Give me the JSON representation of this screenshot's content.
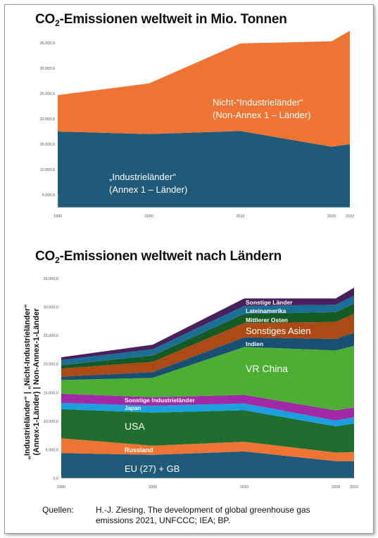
{
  "titles": {
    "chart1_pre": "CO",
    "chart1_sub": "2",
    "chart1_post": "-Emissionen weltweit in Mio. Tonnen",
    "chart2_pre": "CO",
    "chart2_sub": "2",
    "chart2_post": "-Emissionen weltweit nach Ländern"
  },
  "side_label": {
    "line1": "„Industrieländer“ | „Nicht-Industrieländer“",
    "line2": "(Annex-1-Länder) | Non-Annex-1-Länder"
  },
  "sources": {
    "label": "Quellen:",
    "text": "H.-J. Ziesing, The development of global greenhouse gas emissions 2021, UNFCCC; IEA; BP."
  },
  "chart_data": [
    {
      "type": "area",
      "stacked": true,
      "title": "CO2-Emissionen weltweit in Mio. Tonnen",
      "x": [
        1990,
        2000,
        2010,
        2020,
        2022
      ],
      "x_tick_labels": [
        "1990",
        "2000",
        "2010",
        "2020",
        "2022"
      ],
      "y_tick_labels": [
        "5.000,0",
        "10.000,0",
        "15.000,0",
        "20.000,0",
        "25.000,0",
        "30.000,0",
        "35.000,0"
      ],
      "y_ticks": [
        5000,
        10000,
        15000,
        20000,
        25000,
        30000,
        35000
      ],
      "ylim": [
        2500,
        35000
      ],
      "grid": false,
      "series": [
        {
          "label": "„Industrieländer“",
          "label2": "(Annex 1 – Länder)",
          "color": "#1f5a7a",
          "label_color": "#ffffff",
          "values": [
            15000,
            14500,
            15100,
            12000,
            12500
          ]
        },
        {
          "label": "Nicht-“Industrieländer“",
          "label2": "(Non-Annex 1 – Länder)",
          "color": "#ee7433",
          "label_color": "#ffffff",
          "values": [
            7200,
            10000,
            17300,
            20800,
            22400
          ]
        }
      ]
    },
    {
      "type": "area",
      "stacked": true,
      "title": "CO2-Emissionen weltweit nach Ländern",
      "x": [
        1990,
        2000,
        2010,
        2020,
        2022
      ],
      "x_tick_labels": [
        "1990",
        "2000",
        "2010",
        "2020",
        "2022"
      ],
      "y_tick_labels": [
        "0,0",
        "5.000,0",
        "10.000,0",
        "15.000,0",
        "20.000,0",
        "25.000,0",
        "30.000,0",
        "35.000,0"
      ],
      "y_ticks": [
        0,
        5000,
        10000,
        15000,
        20000,
        25000,
        30000,
        35000
      ],
      "ylim": [
        0,
        35000
      ],
      "grid": false,
      "series": [
        {
          "label": "EU (27) + GB",
          "color": "#1f5a7a",
          "values": [
            4400,
            4100,
            4700,
            3000,
            3000
          ]
        },
        {
          "label": "Russland",
          "color": "#ee7433",
          "values": [
            2600,
            1600,
            1700,
            1500,
            1600
          ]
        },
        {
          "label": "USA",
          "color": "#1f6e2e",
          "values": [
            5100,
            5800,
            5500,
            4600,
            5000
          ]
        },
        {
          "label": "Japan",
          "color": "#1c9fe0",
          "values": [
            1100,
            1200,
            1200,
            1000,
            1100
          ]
        },
        {
          "label": "Sonstige Industrieländer",
          "color": "#a02aa6",
          "values": [
            1600,
            1500,
            1500,
            1800,
            1700
          ]
        },
        {
          "label": "VR China",
          "color": "#4caf34",
          "values": [
            2400,
            3400,
            8400,
            10500,
            10800
          ]
        },
        {
          "label": "Indien",
          "color": "#184f73",
          "values": [
            600,
            1000,
            1700,
            2000,
            2300
          ]
        },
        {
          "label": "Sonstiges Asien",
          "color": "#ab4a14",
          "values": [
            1400,
            1800,
            2500,
            3000,
            3300
          ]
        },
        {
          "label": "Mittlerer Osten",
          "color": "#155a22",
          "values": [
            600,
            1100,
            1600,
            1700,
            1800
          ]
        },
        {
          "label": "Lateinamerika",
          "color": "#1c6f94",
          "values": [
            900,
            1100,
            1400,
            1300,
            1400
          ]
        },
        {
          "label": "Sonstige Länder",
          "color": "#4a1f5e",
          "values": [
            500,
            800,
            1300,
            1100,
            1400
          ]
        }
      ]
    }
  ]
}
